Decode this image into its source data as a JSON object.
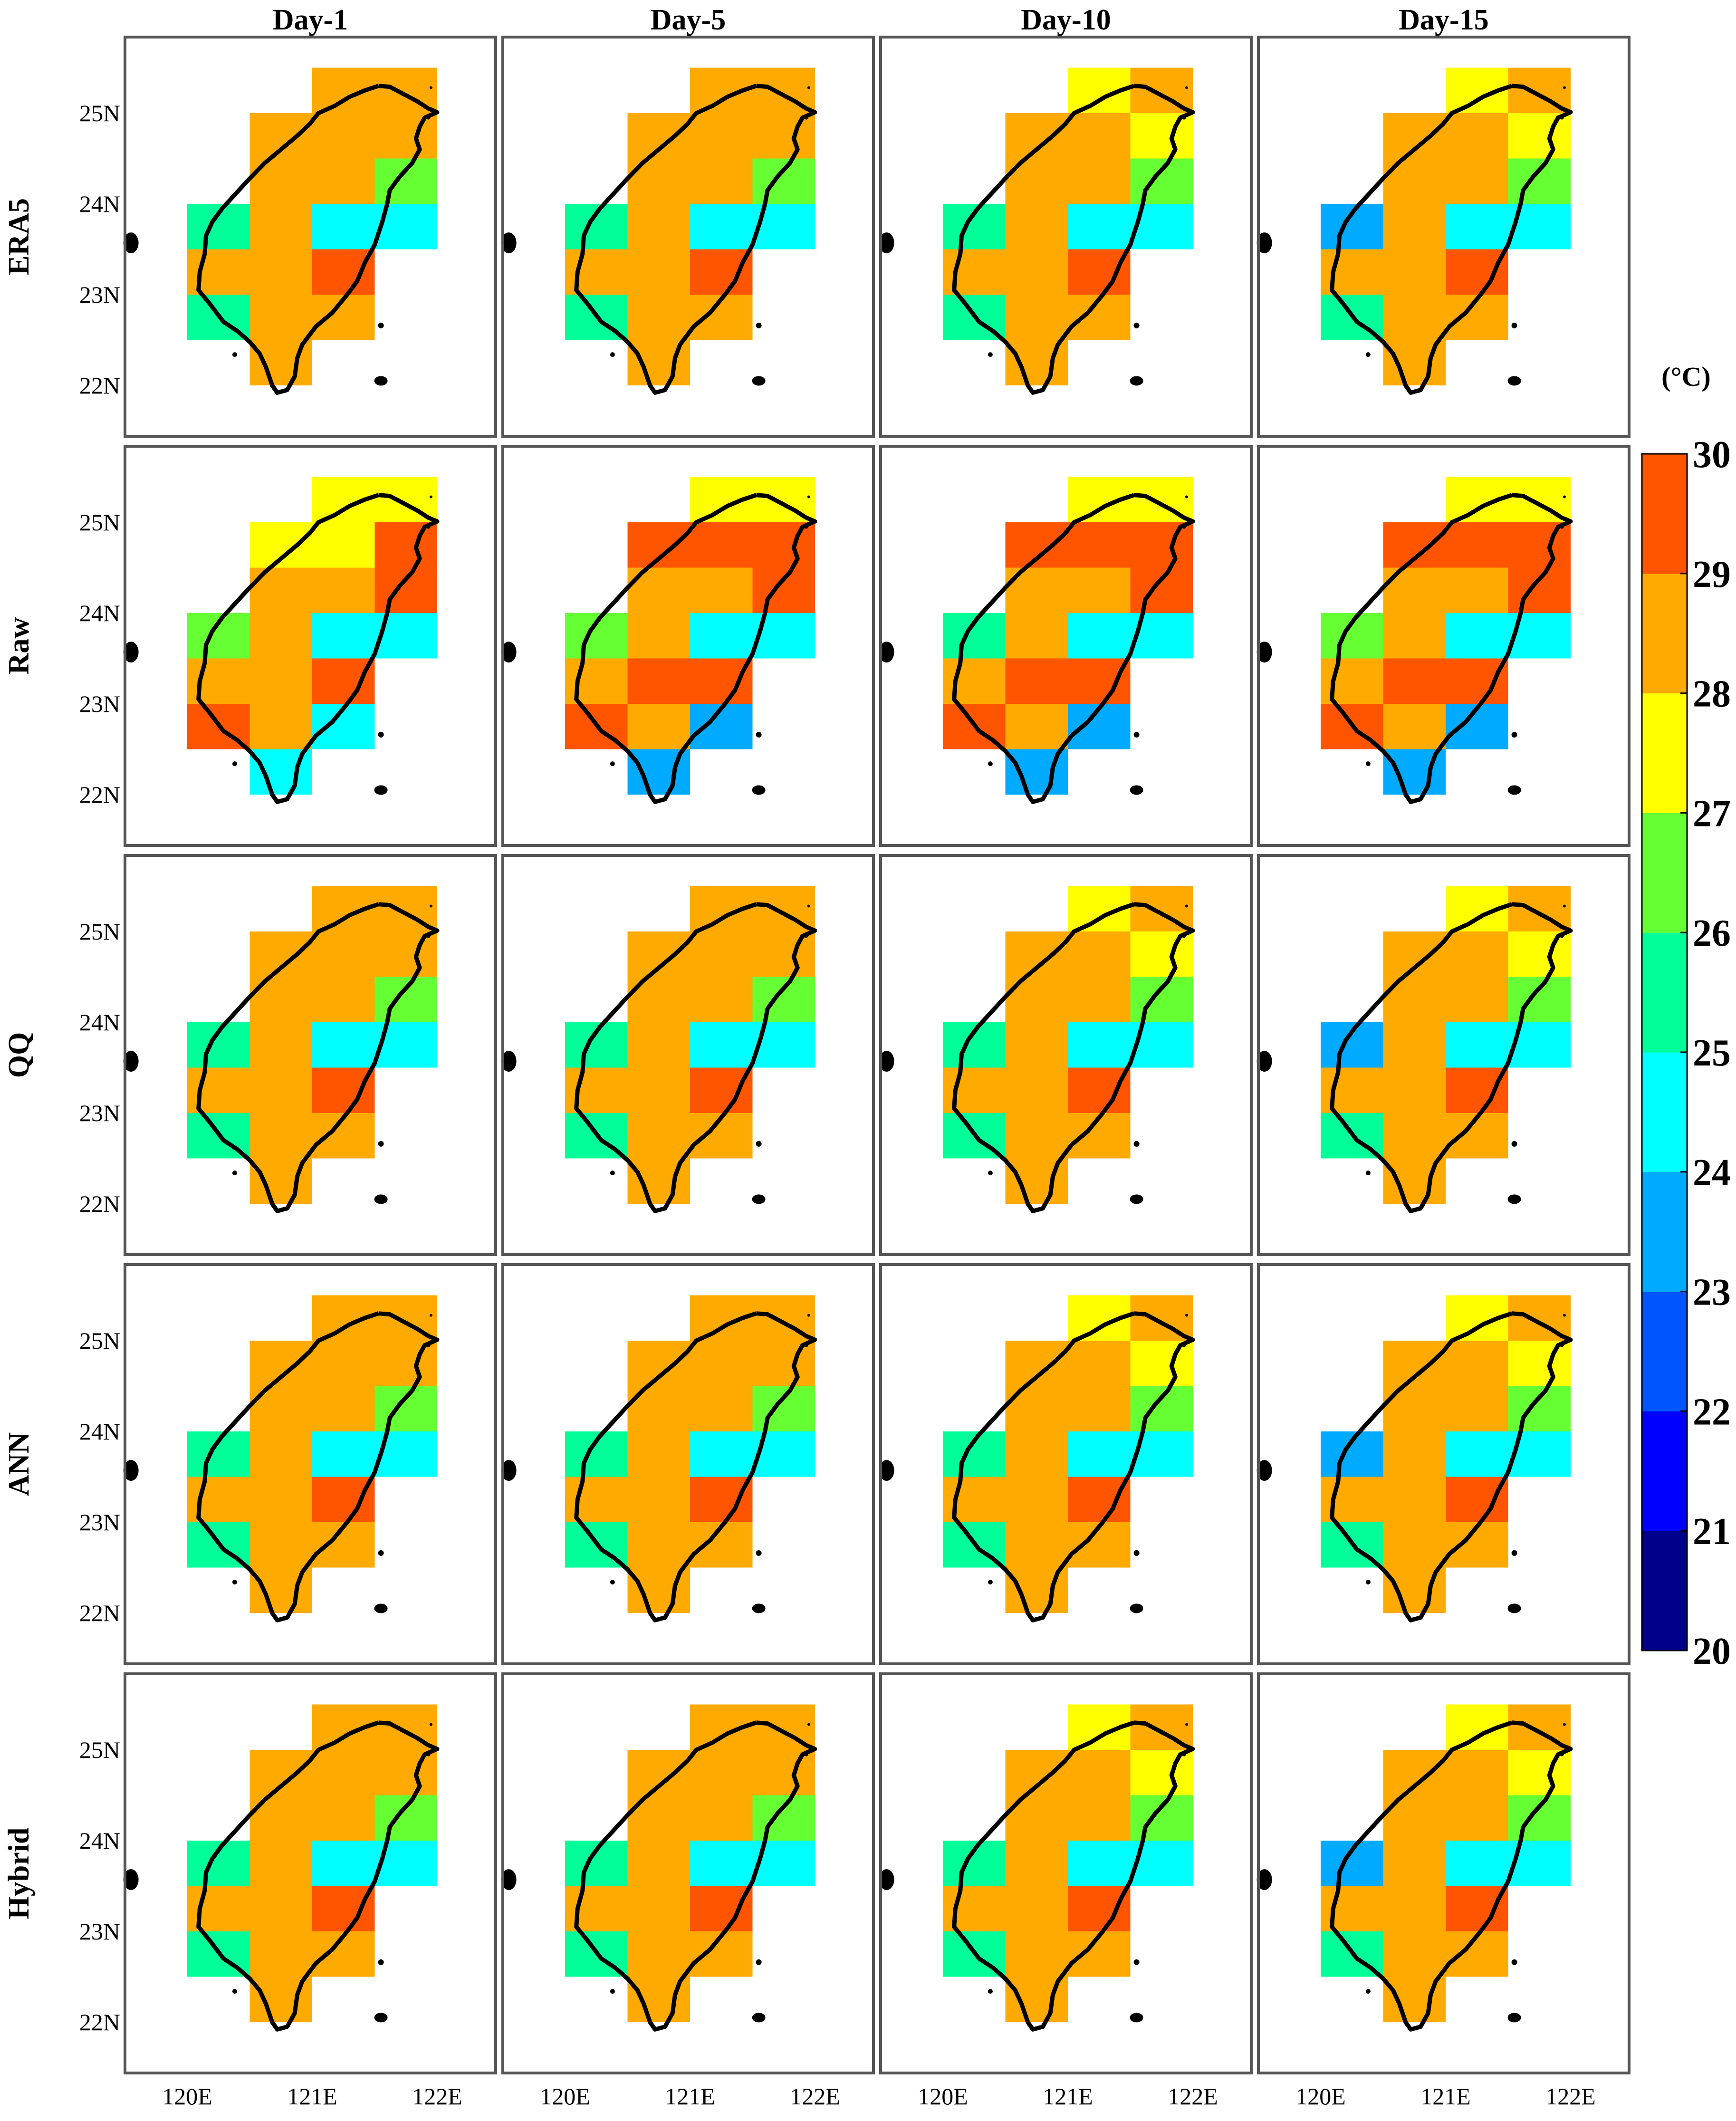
{
  "column_titles": [
    "Day-1",
    "Day-5",
    "Day-10",
    "Day-15"
  ],
  "row_titles": [
    "ERA5",
    "Raw",
    "QQ",
    "ANN",
    "Hybrid"
  ],
  "lat_ticks": [
    "25N",
    "24N",
    "23N",
    "22N"
  ],
  "lon_ticks": [
    "120E",
    "121E",
    "122E"
  ],
  "colorbar": {
    "unit": "(°C)",
    "ticks": [
      "30",
      "29",
      "28",
      "27",
      "26",
      "25",
      "24",
      "23",
      "22",
      "21",
      "20"
    ],
    "min": 20,
    "max": 30,
    "colors": [
      "#00008b",
      "#0000ff",
      "#0055ff",
      "#00aaff",
      "#00ffff",
      "#00ff99",
      "#66ff33",
      "#ffff00",
      "#ffaa00",
      "#ff5500"
    ]
  },
  "chart_data": {
    "type": "heatmap",
    "description_units": "2-m temperature class index per 0.5° grid cell (0 = 20-21°C ... 9 = 29-30°C)",
    "lon_range": [
      119.5,
      122.5
    ],
    "lat_range": [
      21.6,
      26.0
    ],
    "cells": [
      {
        "id": "A",
        "lon": [
          121.0,
          121.5
        ],
        "lat": [
          25.0,
          25.5
        ]
      },
      {
        "id": "B",
        "lon": [
          121.5,
          122.0
        ],
        "lat": [
          25.0,
          25.5
        ]
      },
      {
        "id": "C",
        "lon": [
          120.5,
          121.0
        ],
        "lat": [
          24.5,
          25.0
        ]
      },
      {
        "id": "D",
        "lon": [
          121.0,
          121.5
        ],
        "lat": [
          24.5,
          25.0
        ]
      },
      {
        "id": "E",
        "lon": [
          121.5,
          122.0
        ],
        "lat": [
          24.5,
          25.0
        ]
      },
      {
        "id": "F",
        "lon": [
          120.5,
          121.0
        ],
        "lat": [
          24.0,
          24.5
        ]
      },
      {
        "id": "G",
        "lon": [
          121.0,
          121.5
        ],
        "lat": [
          24.0,
          24.5
        ]
      },
      {
        "id": "H",
        "lon": [
          121.5,
          122.0
        ],
        "lat": [
          24.0,
          24.5
        ]
      },
      {
        "id": "I",
        "lon": [
          120.0,
          120.5
        ],
        "lat": [
          23.5,
          24.0
        ]
      },
      {
        "id": "J",
        "lon": [
          120.5,
          121.0
        ],
        "lat": [
          23.5,
          24.0
        ]
      },
      {
        "id": "K",
        "lon": [
          121.0,
          121.5
        ],
        "lat": [
          23.5,
          24.0
        ]
      },
      {
        "id": "L",
        "lon": [
          121.5,
          122.0
        ],
        "lat": [
          23.5,
          24.0
        ]
      },
      {
        "id": "M",
        "lon": [
          120.0,
          120.5
        ],
        "lat": [
          23.0,
          23.5
        ]
      },
      {
        "id": "N",
        "lon": [
          120.5,
          121.0
        ],
        "lat": [
          23.0,
          23.5
        ]
      },
      {
        "id": "O",
        "lon": [
          121.0,
          121.5
        ],
        "lat": [
          23.0,
          23.5
        ]
      },
      {
        "id": "P",
        "lon": [
          120.0,
          120.5
        ],
        "lat": [
          22.5,
          23.0
        ]
      },
      {
        "id": "Q",
        "lon": [
          120.5,
          121.0
        ],
        "lat": [
          22.5,
          23.0
        ]
      },
      {
        "id": "R",
        "lon": [
          121.0,
          121.5
        ],
        "lat": [
          22.5,
          23.0
        ]
      },
      {
        "id": "S",
        "lon": [
          120.5,
          121.0
        ],
        "lat": [
          22.0,
          22.5
        ]
      }
    ],
    "panels": [
      [
        "8888888658448895888",
        "8888888658448895888",
        "7888788658448895888",
        "7888788638448895888"
      ],
      [
        "7777988968448899844",
        "7799988968448999833",
        "7799988958448999833",
        "7799988968448999833"
      ],
      [
        "8888888658448895888",
        "8888888658448895888",
        "7888788658448895888",
        "7888788638448895888"
      ],
      [
        "8888888658448895888",
        "8888888658448895888",
        "7888788658448895888",
        "7888788638448895888"
      ],
      [
        "8888888658448895888",
        "8888888658448895888",
        "7888788658448895888",
        "7888788638448895888"
      ]
    ]
  }
}
